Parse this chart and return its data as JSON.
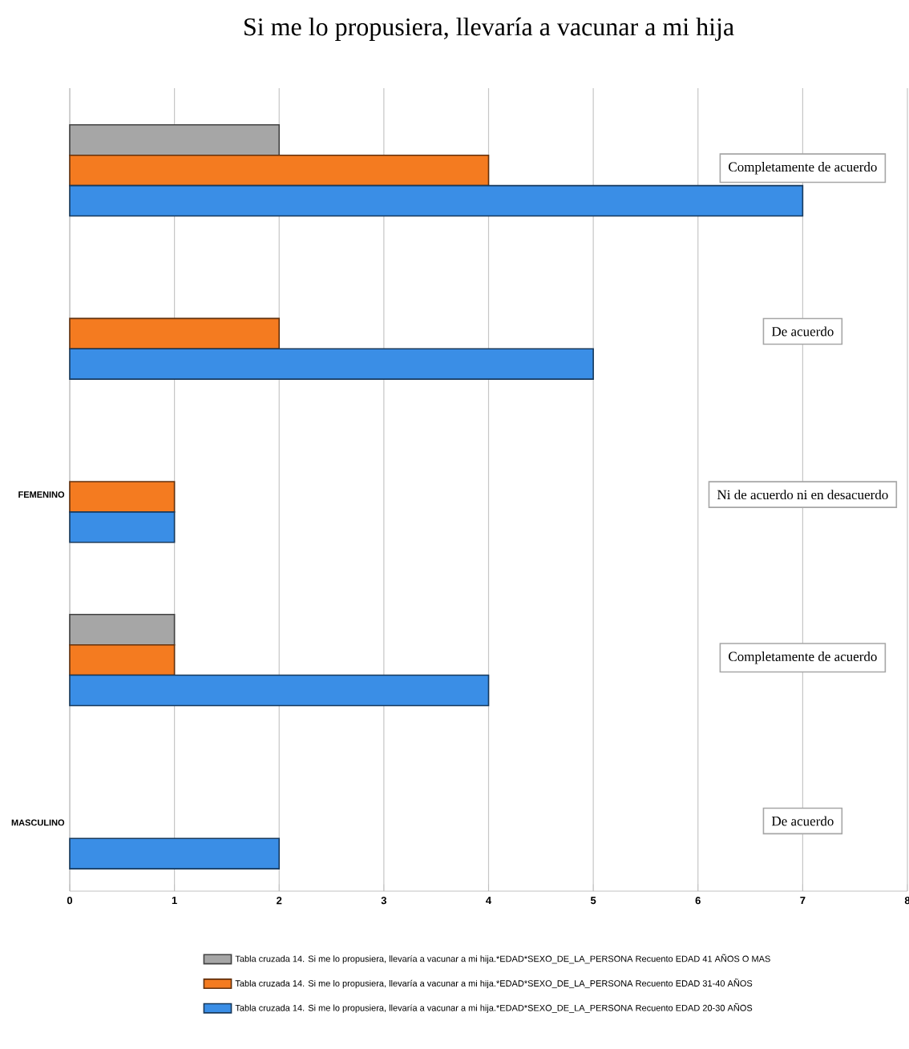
{
  "chart_data": {
    "type": "bar",
    "orientation": "horizontal",
    "title": "Si me lo propusiera, llevaría a vacunar a mi hija",
    "categories": [
      "Completamente de acuerdo",
      "De acuerdo",
      "Ni de acuerdo ni en desacuerdo",
      "Completamente de acuerdo",
      "De acuerdo"
    ],
    "series": [
      {
        "name": "Tabla cruzada 14. Si me lo propusiera, llevaría a vacunar a mi hija.*EDAD*SEXO_DE_LA_PERSONA Recuento EDAD 41 AÑOS O MAS",
        "color": "#a6a6a6",
        "values": [
          2,
          null,
          null,
          1,
          null
        ]
      },
      {
        "name": "Tabla cruzada 14. Si me lo propusiera, llevaría a vacunar a mi hija.*EDAD*SEXO_DE_LA_PERSONA Recuento EDAD 31-40 AÑOS",
        "color": "#f47b20",
        "values": [
          4,
          2,
          1,
          1,
          null
        ]
      },
      {
        "name": "Tabla cruzada 14. Si me lo propusiera, llevaría a vacunar a mi hija.*EDAD*SEXO_DE_LA_PERSONA Recuento EDAD 20-30 AÑOS",
        "color": "#3a8ee6",
        "values": [
          7,
          5,
          1,
          4,
          2
        ]
      }
    ],
    "annotations": [
      "FEMENINO",
      "MASCULINO"
    ],
    "xlim": [
      0,
      8
    ],
    "xticks": [
      0,
      1,
      2,
      3,
      4,
      5,
      6,
      7,
      8
    ],
    "grid": "x",
    "legend": "bottom"
  }
}
